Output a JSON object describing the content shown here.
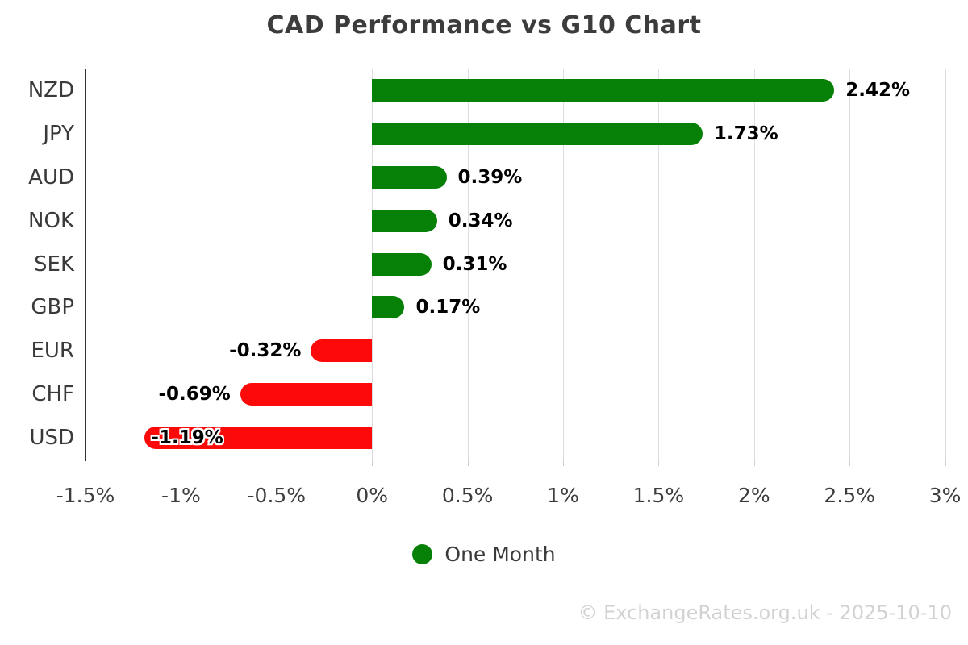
{
  "title": "CAD Performance vs G10 Chart",
  "legend": {
    "label": "One Month"
  },
  "watermark": "© ExchangeRates.org.uk - 2025-10-10",
  "colors": {
    "positive": "#078007",
    "negative": "#fc0a0a",
    "grid": "#dedede",
    "axis": "#333333",
    "tick": "#cfcfcf"
  },
  "chart_data": {
    "type": "bar",
    "orientation": "horizontal",
    "title": "CAD Performance vs G10 Chart",
    "categories": [
      "NZD",
      "JPY",
      "AUD",
      "NOK",
      "SEK",
      "GBP",
      "EUR",
      "CHF",
      "USD"
    ],
    "values": [
      2.42,
      1.73,
      0.39,
      0.34,
      0.31,
      0.17,
      -0.32,
      -0.69,
      -1.19
    ],
    "value_labels": [
      "2.42%",
      "1.73%",
      "0.39%",
      "0.34%",
      "0.31%",
      "0.17%",
      "-0.32%",
      "-0.69%",
      "-1.19%"
    ],
    "series": [
      {
        "name": "One Month",
        "values": [
          2.42,
          1.73,
          0.39,
          0.34,
          0.31,
          0.17,
          -0.32,
          -0.69,
          -1.19
        ]
      }
    ],
    "xlabel": "",
    "ylabel": "",
    "xlim": [
      -1.5,
      3
    ],
    "xtick_values": [
      -1.5,
      -1,
      -0.5,
      0,
      0.5,
      1,
      1.5,
      2,
      2.5,
      3
    ],
    "xtick_labels": [
      "-1.5%",
      "-1%",
      "-0.5%",
      "0%",
      "0.5%",
      "1%",
      "1.5%",
      "2%",
      "2.5%",
      "3%"
    ],
    "grid": true,
    "legend_position": "bottom"
  }
}
